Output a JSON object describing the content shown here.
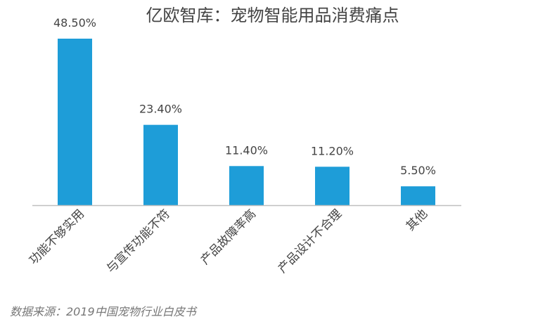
{
  "chart_data": {
    "type": "bar",
    "title": "亿欧智库：宠物智能用品消费痛点",
    "categories": [
      "功能不够实用",
      "与宣传功能不符",
      "产品故障率高",
      "产品设计不合理",
      "其他"
    ],
    "values": [
      48.5,
      23.4,
      11.4,
      11.2,
      5.5
    ],
    "value_labels": [
      "48.50%",
      "23.40%",
      "11.40%",
      "11.20%",
      "5.50%"
    ],
    "ylim": [
      0,
      50
    ],
    "grid": false,
    "legend": "none",
    "xlabel": "",
    "ylabel": ""
  },
  "source": "数据来源：2019中国宠物行业白皮书",
  "colors": {
    "bar": "#1e9dd8",
    "axis": "#bfbfbf",
    "label": "#444444"
  }
}
